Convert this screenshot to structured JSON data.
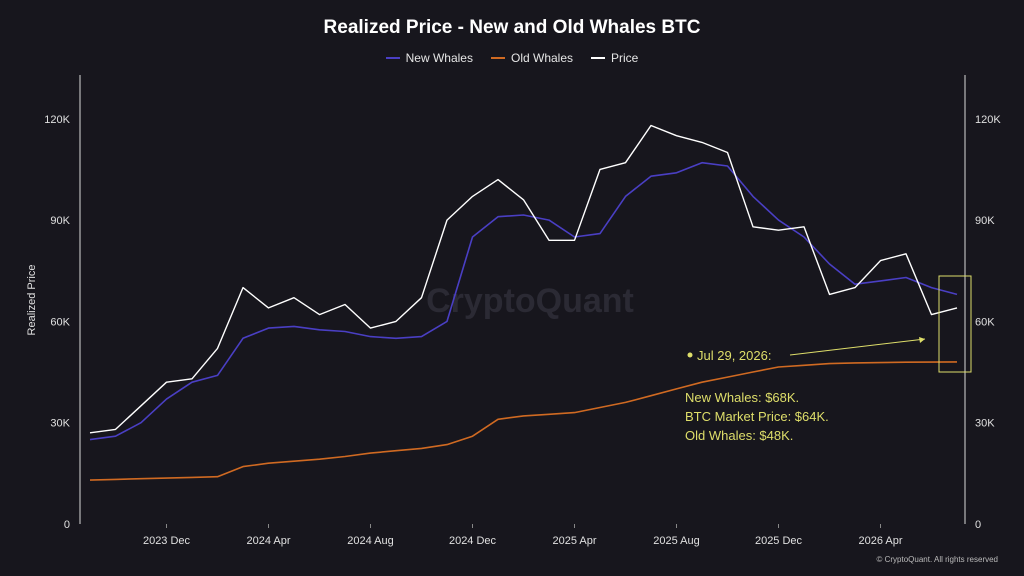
{
  "chart_data": {
    "type": "line",
    "title": "Realized Price - New and Old Whales BTC",
    "ylabel": "Realized Price",
    "ylim": [
      0,
      130000
    ],
    "x_ticks": [
      "2023 Dec",
      "2024 Apr",
      "2024 Aug",
      "2024 Dec",
      "2025 Apr",
      "2025 Aug",
      "2025 Dec",
      "2026 Apr"
    ],
    "y_ticks_left": [
      "0",
      "30K",
      "60K",
      "90K",
      "120K"
    ],
    "y_ticks_right": [
      "0",
      "30K",
      "60K",
      "90K",
      "120K"
    ],
    "x": [
      "2023-09",
      "2023-10",
      "2023-11",
      "2023-12",
      "2024-01",
      "2024-02",
      "2024-03",
      "2024-04",
      "2024-05",
      "2024-06",
      "2024-07",
      "2024-08",
      "2024-09",
      "2024-10",
      "2024-11",
      "2024-12",
      "2025-01",
      "2025-02",
      "2025-03",
      "2025-04",
      "2025-05",
      "2025-06",
      "2025-07",
      "2025-08",
      "2025-09",
      "2025-10",
      "2025-11",
      "2025-12",
      "2026-01",
      "2026-02",
      "2026-03",
      "2026-04",
      "2026-05",
      "2026-06",
      "2026-07"
    ],
    "series": [
      {
        "name": "New Whales",
        "color": "#4a3fc4",
        "values": [
          25000,
          26000,
          30000,
          37000,
          42000,
          44000,
          55000,
          58000,
          58500,
          57500,
          57000,
          55500,
          55000,
          55500,
          60000,
          85000,
          91000,
          91500,
          90000,
          85000,
          86000,
          97000,
          103000,
          104000,
          107000,
          106000,
          97000,
          90000,
          85000,
          77000,
          71000,
          72000,
          73000,
          70000,
          68000
        ]
      },
      {
        "name": "Old Whales",
        "color": "#d06a22",
        "values": [
          13000,
          13200,
          13400,
          13600,
          13800,
          14000,
          17000,
          18000,
          18600,
          19200,
          20000,
          21000,
          21700,
          22400,
          23500,
          26000,
          31000,
          32000,
          32500,
          33000,
          34500,
          36000,
          38000,
          40000,
          42000,
          43500,
          45000,
          46500,
          47000,
          47500,
          47700,
          47800,
          47900,
          47950,
          48000
        ]
      },
      {
        "name": "Price",
        "color": "#ffffff",
        "values": [
          27000,
          28000,
          35000,
          42000,
          43000,
          52000,
          70000,
          64000,
          67000,
          62000,
          65000,
          58000,
          60000,
          67000,
          90000,
          97000,
          102000,
          96000,
          84000,
          84000,
          105000,
          107000,
          118000,
          115000,
          113000,
          110000,
          88000,
          87000,
          88000,
          68000,
          70000,
          78000,
          80000,
          62000,
          64000
        ]
      }
    ],
    "grid": false,
    "legend_position": "top-center",
    "annotation": {
      "date": "Jul 29, 2026:",
      "lines": [
        "New Whales: $68K.",
        "BTC Market Price: $64K.",
        "Old Whales: $48K."
      ],
      "color": "#dede6a"
    }
  },
  "watermark": "CryptoQuant",
  "credit": "© CryptoQuant. All rights reserved"
}
